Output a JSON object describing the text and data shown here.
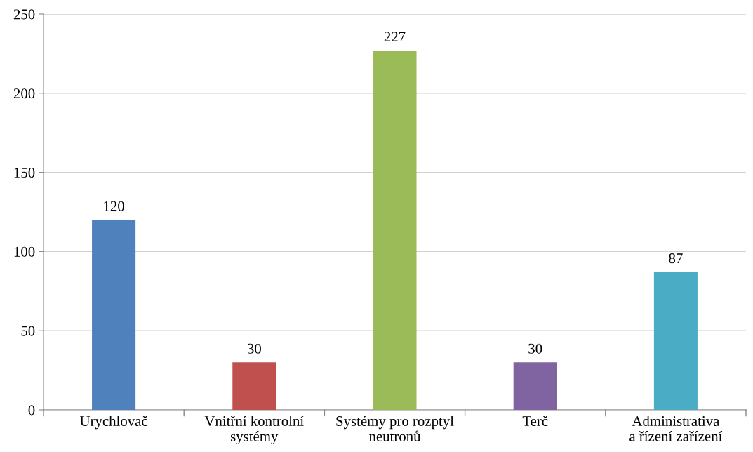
{
  "chart_data": {
    "type": "bar",
    "categories": [
      "Urychlovač",
      "Vnitřní kontrolní\nsystémy",
      "Systémy pro rozptyl\nneutronů",
      "Terč",
      "Administrativa\na řízení zařízení"
    ],
    "values": [
      120,
      30,
      227,
      30,
      87
    ],
    "colors": [
      "#4f81bd",
      "#c0504d",
      "#9bbb59",
      "#8064a2",
      "#4bacc6"
    ],
    "ylim": [
      0,
      250
    ],
    "yticks": [
      0,
      50,
      100,
      150,
      200,
      250
    ],
    "grid": "y",
    "data_labels": true
  }
}
